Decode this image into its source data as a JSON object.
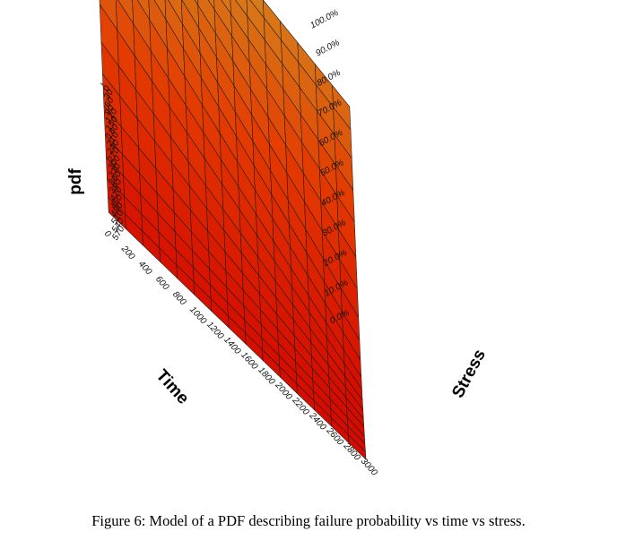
{
  "figure": {
    "caption": "Figure 6: Model of a PDF describing failure probability vs time vs stress."
  },
  "chart_data": {
    "type": "surface3d",
    "title": "",
    "xlabel": "Time",
    "ylabel": "Stress",
    "zlabel": "pdf",
    "x_ticks": [
      "0",
      "200",
      "400",
      "600",
      "800",
      "1000",
      "1200",
      "1400",
      "1600",
      "1800",
      "2000",
      "2200",
      "2400",
      "2600",
      "2800",
      "3000"
    ],
    "y_ticks": [
      "0",
      "30",
      "60",
      "90",
      "120",
      "150",
      "180",
      "210",
      "240",
      "270",
      "300",
      "330",
      "360",
      "390",
      "420",
      "450",
      "480",
      "510",
      "540",
      "570"
    ],
    "z_ticks": [
      "0.0%",
      "10.0%",
      "20.0%",
      "30.0%",
      "40.0%",
      "50.0%",
      "60.0%",
      "70.0%",
      "80.0%",
      "90.0%",
      "100.0%"
    ],
    "xlim": [
      0,
      3000
    ],
    "ylim": [
      0,
      570
    ],
    "zlim": [
      0,
      100
    ],
    "z_unit": "%",
    "surface": {
      "x_step": 200,
      "y_step": 30,
      "z_at_time_0": [
        99,
        99,
        98.5,
        98,
        97,
        95,
        92,
        87,
        81,
        73,
        64,
        55,
        45,
        37,
        29,
        22,
        17,
        12.5,
        9,
        6.5
      ],
      "z_at_time_3000": [
        68,
        63,
        56,
        48,
        40,
        31,
        23,
        16,
        11,
        7,
        4,
        2.5,
        1.5,
        1,
        0.5,
        0.5,
        0,
        0,
        0,
        0
      ]
    },
    "colors": {
      "low": "#d40b00",
      "mid": "#e33b00",
      "high": "#cfa62a",
      "side_wall": "#9a9a9a",
      "grid": "#1a1a1a"
    }
  }
}
